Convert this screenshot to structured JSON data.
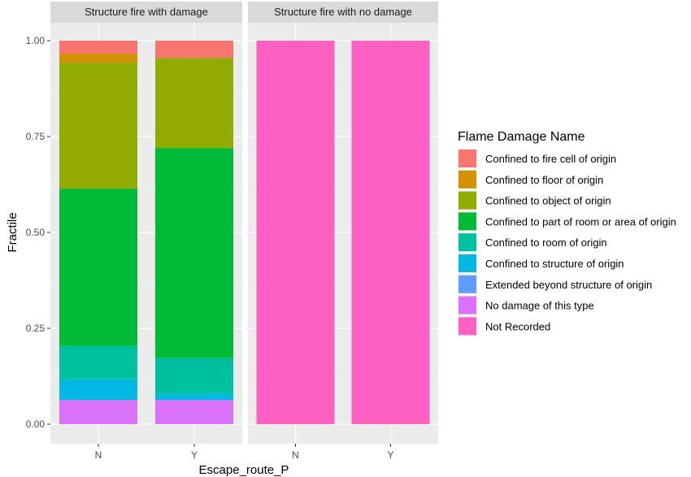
{
  "chart_data": {
    "type": "bar",
    "stacked": true,
    "facet_field": "Structure fire with damage / Structure fire with no damage",
    "facets": [
      {
        "title": "Structure fire with damage",
        "categories": [
          "N",
          "Y"
        ],
        "series": [
          {
            "name": "No damage of this type",
            "values": [
              0.063,
              0.063
            ]
          },
          {
            "name": "Extended beyond structure of origin",
            "values": [
              0.0,
              0.0
            ]
          },
          {
            "name": "Confined to structure of origin",
            "values": [
              0.054,
              0.016
            ]
          },
          {
            "name": "Confined to room of origin",
            "values": [
              0.087,
              0.093
            ]
          },
          {
            "name": "Confined to part of room or area of origin",
            "values": [
              0.41,
              0.548
            ]
          },
          {
            "name": "Confined to object of origin",
            "values": [
              0.328,
              0.235
            ]
          },
          {
            "name": "Confined to floor of origin",
            "values": [
              0.024,
              0.0
            ]
          },
          {
            "name": "Confined to fire cell of origin",
            "values": [
              0.034,
              0.045
            ]
          },
          {
            "name": "Not Recorded",
            "values": [
              0.0,
              0.0
            ]
          }
        ]
      },
      {
        "title": "Structure fire with no damage",
        "categories": [
          "N",
          "Y"
        ],
        "series": [
          {
            "name": "Not Recorded",
            "values": [
              1.0,
              1.0
            ]
          }
        ]
      }
    ],
    "xlabel": "Escape_route_P",
    "ylabel": "Fractile",
    "ylim": [
      0,
      1.04
    ],
    "yticks": [
      "0.00",
      "0.25",
      "0.50",
      "0.75",
      "1.00"
    ],
    "ytick_values": [
      0,
      0.25,
      0.5,
      0.75,
      1.0
    ],
    "grid": true,
    "legend": {
      "title": "Flame Damage Name",
      "placement": "right",
      "items": [
        {
          "label": "Confined to fire cell of origin",
          "color": "#F8766D"
        },
        {
          "label": "Confined to floor of origin",
          "color": "#D39200"
        },
        {
          "label": "Confined to object of origin",
          "color": "#93AA00"
        },
        {
          "label": "Confined to part of room or area of origin",
          "color": "#00BA38"
        },
        {
          "label": "Confined to room of origin",
          "color": "#00C19F"
        },
        {
          "label": "Confined to structure of origin",
          "color": "#00B9E3"
        },
        {
          "label": "Extended beyond structure of origin",
          "color": "#619CFF"
        },
        {
          "label": "No damage of this type",
          "color": "#DB72FB"
        },
        {
          "label": "Not Recorded",
          "color": "#FF61C3"
        }
      ]
    }
  }
}
